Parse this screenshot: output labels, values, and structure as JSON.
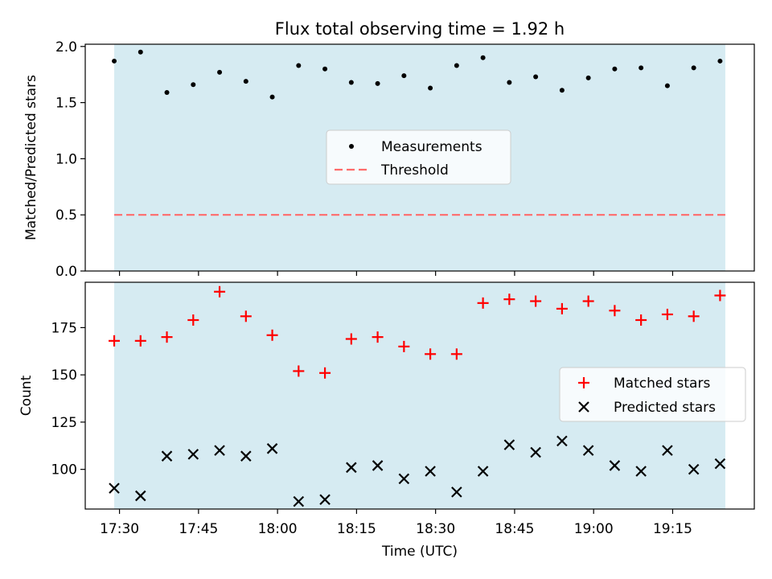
{
  "chart_data": [
    {
      "type": "scatter",
      "title": "Flux total observing time = 1.92 h",
      "ylabel": "Matched/Predicted stars",
      "xlabel": "",
      "ylim": [
        0,
        2.02
      ],
      "yticks": [
        0.0,
        0.5,
        1.0,
        1.5,
        2.0
      ],
      "ytick_labels": [
        "0.0",
        "0.5",
        "1.0",
        "1.5",
        "2.0"
      ],
      "shaded_interval": [
        "17:29",
        "19:25"
      ],
      "shade_color": "#add8e6",
      "threshold": 0.5,
      "legend_position": "center",
      "legend": {
        "measurements": "Measurements",
        "threshold": "Threshold"
      },
      "threshold_color": "#ff6b6b",
      "series": [
        {
          "name": "Measurements",
          "x": [
            "17:29",
            "17:34",
            "17:39",
            "17:44",
            "17:49",
            "17:54",
            "17:59",
            "18:04",
            "18:09",
            "18:14",
            "18:19",
            "18:24",
            "18:29",
            "18:34",
            "18:39",
            "18:44",
            "18:49",
            "18:54",
            "18:59",
            "19:04",
            "19:09",
            "19:14",
            "19:19",
            "19:24"
          ],
          "y": [
            1.87,
            1.95,
            1.59,
            1.66,
            1.77,
            1.69,
            1.55,
            1.83,
            1.8,
            1.68,
            1.67,
            1.74,
            1.63,
            1.83,
            1.9,
            1.68,
            1.73,
            1.61,
            1.72,
            1.8,
            1.81,
            1.65,
            1.81,
            1.87
          ],
          "color": "#000000",
          "marker": "dot"
        }
      ]
    },
    {
      "type": "scatter",
      "title": "",
      "ylabel": "Count",
      "xlabel": "Time (UTC)",
      "ylim": [
        79,
        199
      ],
      "yticks": [
        100,
        125,
        150,
        175
      ],
      "ytick_labels": [
        "100",
        "125",
        "150",
        "175"
      ],
      "xticks": [
        "17:30",
        "17:45",
        "18:00",
        "18:15",
        "18:30",
        "18:45",
        "19:00",
        "19:15"
      ],
      "shaded_interval": [
        "17:29",
        "19:25"
      ],
      "shade_color": "#add8e6",
      "legend_position": "right",
      "legend": {
        "matched": "Matched stars",
        "predicted": "Predicted stars"
      },
      "series": [
        {
          "name": "Matched stars",
          "x": [
            "17:29",
            "17:34",
            "17:39",
            "17:44",
            "17:49",
            "17:54",
            "17:59",
            "18:04",
            "18:09",
            "18:14",
            "18:19",
            "18:24",
            "18:29",
            "18:34",
            "18:39",
            "18:44",
            "18:49",
            "18:54",
            "18:59",
            "19:04",
            "19:09",
            "19:14",
            "19:19",
            "19:24"
          ],
          "y": [
            168,
            168,
            170,
            179,
            194,
            181,
            171,
            152,
            151,
            169,
            170,
            165,
            161,
            161,
            188,
            190,
            189,
            185,
            189,
            184,
            179,
            182,
            181,
            192
          ],
          "color": "#ff0000",
          "marker": "plus"
        },
        {
          "name": "Predicted stars",
          "x": [
            "17:29",
            "17:34",
            "17:39",
            "17:44",
            "17:49",
            "17:54",
            "17:59",
            "18:04",
            "18:09",
            "18:14",
            "18:19",
            "18:24",
            "18:29",
            "18:34",
            "18:39",
            "18:44",
            "18:49",
            "18:54",
            "18:59",
            "19:04",
            "19:09",
            "19:14",
            "19:19",
            "19:24"
          ],
          "y": [
            90,
            86,
            107,
            108,
            110,
            107,
            111,
            83,
            84,
            101,
            102,
            95,
            99,
            88,
            99,
            113,
            109,
            115,
            110,
            102,
            99,
            110,
            100,
            103
          ],
          "color": "#000000",
          "marker": "x"
        }
      ]
    }
  ]
}
